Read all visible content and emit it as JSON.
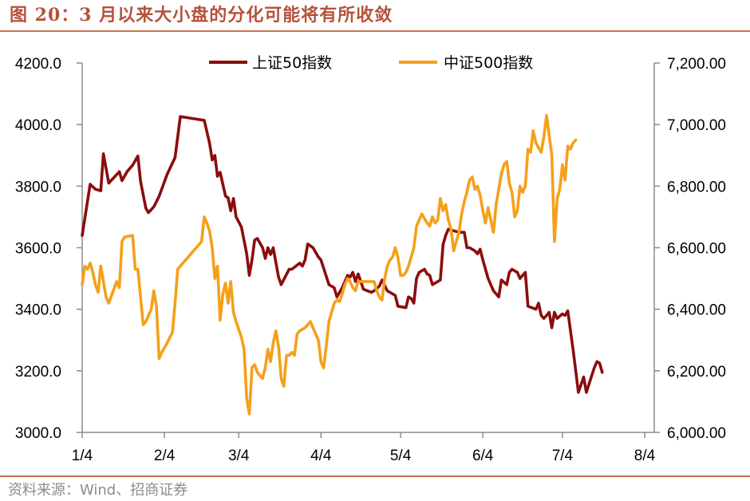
{
  "title": "图 20：3 月以来大小盘的分化可能将有所收敛",
  "source": "资料来源：Wind、招商证券",
  "colors": {
    "sh50": "#8b0d0d",
    "csi500": "#f5a01a",
    "accent": "#b5523a"
  },
  "chart_data": {
    "type": "line",
    "title": "",
    "xlabel": "",
    "ylabel": "",
    "x_ticks": [
      "1/4",
      "2/4",
      "3/4",
      "4/4",
      "5/4",
      "6/4",
      "7/4",
      "8/4"
    ],
    "x_tick_days": [
      0,
      31,
      59,
      90,
      120,
      151,
      181,
      212
    ],
    "y_left": {
      "lim": [
        3000,
        4200
      ],
      "ticks": [
        "3000.0",
        "3200.0",
        "3400.0",
        "3600.0",
        "3800.0",
        "4000.0",
        "4200.0"
      ]
    },
    "y_right": {
      "lim": [
        6000,
        7200
      ],
      "ticks": [
        "6,000.00",
        "6,200.00",
        "6,400.00",
        "6,600.00",
        "6,800.00",
        "7,000.00",
        "7,200.00"
      ]
    },
    "legend": {
      "position": "top-center"
    },
    "grid": false,
    "series": [
      {
        "name": "上证50指数",
        "axis": "left",
        "points": [
          [
            0,
            3640
          ],
          [
            3,
            3806
          ],
          [
            5,
            3790
          ],
          [
            7,
            3785
          ],
          [
            8,
            3905
          ],
          [
            10,
            3810
          ],
          [
            14,
            3847
          ],
          [
            15,
            3818
          ],
          [
            17,
            3848
          ],
          [
            19,
            3868
          ],
          [
            21,
            3898
          ],
          [
            22,
            3815
          ],
          [
            24,
            3728
          ],
          [
            25,
            3714
          ],
          [
            27,
            3733
          ],
          [
            29,
            3767
          ],
          [
            32,
            3838
          ],
          [
            35,
            3893
          ],
          [
            37,
            4026
          ],
          [
            46,
            4014
          ],
          [
            48,
            3940
          ],
          [
            49,
            3885
          ],
          [
            50,
            3900
          ],
          [
            51,
            3832
          ],
          [
            52,
            3845
          ],
          [
            54,
            3768
          ],
          [
            55,
            3762
          ],
          [
            56,
            3720
          ],
          [
            57,
            3760
          ],
          [
            58,
            3700
          ],
          [
            60,
            3668
          ],
          [
            62,
            3580
          ],
          [
            63,
            3510
          ],
          [
            64,
            3560
          ],
          [
            65,
            3625
          ],
          [
            66,
            3630
          ],
          [
            68,
            3600
          ],
          [
            69,
            3565
          ],
          [
            70,
            3600
          ],
          [
            71,
            3578
          ],
          [
            72,
            3600
          ],
          [
            74,
            3505
          ],
          [
            75,
            3480
          ],
          [
            78,
            3530
          ],
          [
            79,
            3530
          ],
          [
            82,
            3550
          ],
          [
            83,
            3540
          ],
          [
            84,
            3560
          ],
          [
            85,
            3612
          ],
          [
            87,
            3600
          ],
          [
            89,
            3570
          ],
          [
            90,
            3560
          ],
          [
            93,
            3480
          ],
          [
            95,
            3470
          ],
          [
            96,
            3440
          ],
          [
            98,
            3470
          ],
          [
            100,
            3510
          ],
          [
            101,
            3505
          ],
          [
            102,
            3520
          ],
          [
            103,
            3490
          ],
          [
            104,
            3515
          ],
          [
            106,
            3465
          ],
          [
            109,
            3455
          ],
          [
            110,
            3460
          ],
          [
            112,
            3475
          ],
          [
            113,
            3495
          ],
          [
            115,
            3460
          ],
          [
            118,
            3445
          ],
          [
            119,
            3410
          ],
          [
            122,
            3405
          ],
          [
            123,
            3440
          ],
          [
            124,
            3435
          ],
          [
            125,
            3420
          ],
          [
            126,
            3500
          ],
          [
            127,
            3520
          ],
          [
            129,
            3530
          ],
          [
            130,
            3515
          ],
          [
            131,
            3510
          ],
          [
            132,
            3480
          ],
          [
            135,
            3495
          ],
          [
            136,
            3610
          ],
          [
            137,
            3640
          ],
          [
            138,
            3660
          ],
          [
            142,
            3650
          ],
          [
            144,
            3650
          ],
          [
            145,
            3600
          ],
          [
            146,
            3600
          ],
          [
            148,
            3590
          ],
          [
            149,
            3580
          ],
          [
            150,
            3595
          ],
          [
            151,
            3560
          ],
          [
            152,
            3530
          ],
          [
            153,
            3500
          ],
          [
            154,
            3480
          ],
          [
            155,
            3460
          ],
          [
            157,
            3440
          ],
          [
            158,
            3495
          ],
          [
            160,
            3480
          ],
          [
            161,
            3520
          ],
          [
            162,
            3530
          ],
          [
            164,
            3520
          ],
          [
            165,
            3500
          ],
          [
            166,
            3510
          ],
          [
            167,
            3520
          ],
          [
            168,
            3410
          ],
          [
            171,
            3400
          ],
          [
            172,
            3420
          ],
          [
            173,
            3380
          ],
          [
            174,
            3370
          ],
          [
            175,
            3380
          ],
          [
            176,
            3390
          ],
          [
            177,
            3340
          ],
          [
            178,
            3390
          ],
          [
            179,
            3370
          ],
          [
            181,
            3385
          ],
          [
            182,
            3380
          ],
          [
            183,
            3395
          ],
          [
            185,
            3270
          ],
          [
            186,
            3200
          ],
          [
            187,
            3130
          ],
          [
            189,
            3180
          ],
          [
            190,
            3130
          ],
          [
            193,
            3210
          ],
          [
            194,
            3230
          ],
          [
            195,
            3225
          ],
          [
            196,
            3195
          ]
        ]
      },
      {
        "name": "中证500指数",
        "axis": "right",
        "points": [
          [
            0,
            6480
          ],
          [
            1,
            6540
          ],
          [
            2,
            6530
          ],
          [
            3,
            6550
          ],
          [
            4,
            6520
          ],
          [
            5,
            6480
          ],
          [
            6,
            6455
          ],
          [
            7,
            6540
          ],
          [
            9,
            6440
          ],
          [
            10,
            6420
          ],
          [
            13,
            6490
          ],
          [
            14,
            6470
          ],
          [
            15,
            6620
          ],
          [
            16,
            6635
          ],
          [
            19,
            6640
          ],
          [
            20,
            6530
          ],
          [
            21,
            6530
          ],
          [
            23,
            6350
          ],
          [
            24,
            6360
          ],
          [
            26,
            6400
          ],
          [
            27,
            6460
          ],
          [
            28,
            6410
          ],
          [
            29,
            6240
          ],
          [
            30,
            6260
          ],
          [
            32,
            6290
          ],
          [
            34,
            6325
          ],
          [
            35,
            6420
          ],
          [
            36,
            6530
          ],
          [
            45,
            6620
          ],
          [
            46,
            6700
          ],
          [
            47,
            6680
          ],
          [
            48,
            6655
          ],
          [
            49,
            6600
          ],
          [
            50,
            6500
          ],
          [
            51,
            6540
          ],
          [
            52,
            6365
          ],
          [
            53,
            6450
          ],
          [
            54,
            6485
          ],
          [
            55,
            6420
          ],
          [
            56,
            6490
          ],
          [
            57,
            6390
          ],
          [
            58,
            6360
          ],
          [
            60,
            6310
          ],
          [
            61,
            6270
          ],
          [
            62,
            6110
          ],
          [
            63,
            6060
          ],
          [
            64,
            6210
          ],
          [
            65,
            6220
          ],
          [
            66,
            6195
          ],
          [
            68,
            6175
          ],
          [
            69,
            6210
          ],
          [
            70,
            6270
          ],
          [
            71,
            6230
          ],
          [
            72,
            6290
          ],
          [
            73,
            6330
          ],
          [
            74,
            6280
          ],
          [
            75,
            6175
          ],
          [
            76,
            6150
          ],
          [
            77,
            6250
          ],
          [
            78,
            6250
          ],
          [
            79,
            6260
          ],
          [
            80,
            6250
          ],
          [
            81,
            6320
          ],
          [
            82,
            6330
          ],
          [
            84,
            6340
          ],
          [
            85,
            6350
          ],
          [
            86,
            6360
          ],
          [
            87,
            6340
          ],
          [
            89,
            6300
          ],
          [
            90,
            6230
          ],
          [
            91,
            6210
          ],
          [
            92,
            6280
          ],
          [
            93,
            6360
          ],
          [
            94,
            6390
          ],
          [
            95,
            6420
          ],
          [
            96,
            6430
          ],
          [
            97,
            6425
          ],
          [
            98,
            6450
          ],
          [
            99,
            6480
          ],
          [
            100,
            6500
          ],
          [
            101,
            6490
          ],
          [
            102,
            6470
          ],
          [
            103,
            6460
          ],
          [
            104,
            6490
          ],
          [
            110,
            6490
          ],
          [
            111,
            6460
          ],
          [
            112,
            6440
          ],
          [
            113,
            6430
          ],
          [
            114,
            6500
          ],
          [
            115,
            6540
          ],
          [
            116,
            6560
          ],
          [
            117,
            6570
          ],
          [
            118,
            6600
          ],
          [
            119,
            6570
          ],
          [
            120,
            6510
          ],
          [
            121,
            6510
          ],
          [
            122,
            6520
          ],
          [
            123,
            6540
          ],
          [
            124,
            6570
          ],
          [
            125,
            6600
          ],
          [
            126,
            6670
          ],
          [
            127,
            6690
          ],
          [
            128,
            6710
          ],
          [
            130,
            6680
          ],
          [
            131,
            6670
          ],
          [
            132,
            6700
          ],
          [
            133,
            6680
          ],
          [
            134,
            6690
          ],
          [
            135,
            6760
          ],
          [
            136,
            6720
          ],
          [
            137,
            6740
          ],
          [
            138,
            6690
          ],
          [
            139,
            6660
          ],
          [
            140,
            6590
          ],
          [
            141,
            6620
          ],
          [
            142,
            6650
          ],
          [
            143,
            6710
          ],
          [
            144,
            6750
          ],
          [
            145,
            6780
          ],
          [
            146,
            6820
          ],
          [
            147,
            6830
          ],
          [
            148,
            6790
          ],
          [
            149,
            6800
          ],
          [
            150,
            6770
          ],
          [
            151,
            6720
          ],
          [
            152,
            6680
          ],
          [
            153,
            6730
          ],
          [
            154,
            6690
          ],
          [
            155,
            6650
          ],
          [
            156,
            6740
          ],
          [
            157,
            6790
          ],
          [
            158,
            6840
          ],
          [
            159,
            6870
          ],
          [
            160,
            6880
          ],
          [
            161,
            6810
          ],
          [
            162,
            6780
          ],
          [
            163,
            6700
          ],
          [
            164,
            6720
          ],
          [
            165,
            6800
          ],
          [
            166,
            6780
          ],
          [
            167,
            6800
          ],
          [
            168,
            6920
          ],
          [
            169,
            6910
          ],
          [
            170,
            6980
          ],
          [
            171,
            6940
          ],
          [
            173,
            6910
          ],
          [
            174,
            6960
          ],
          [
            175,
            7030
          ],
          [
            177,
            6900
          ],
          [
            178,
            6620
          ],
          [
            179,
            6760
          ],
          [
            180,
            6790
          ],
          [
            181,
            6870
          ],
          [
            182,
            6820
          ],
          [
            183,
            6930
          ],
          [
            184,
            6920
          ],
          [
            185,
            6940
          ],
          [
            186,
            6950
          ]
        ]
      }
    ]
  }
}
